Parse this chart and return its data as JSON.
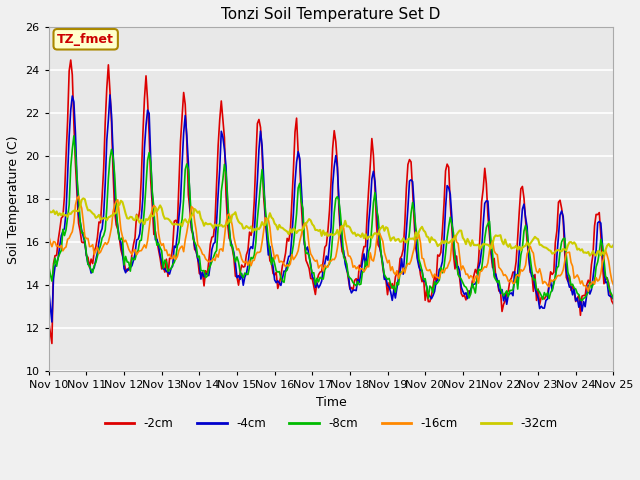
{
  "title": "Tonzi Soil Temperature Set D",
  "xlabel": "Time",
  "ylabel": "Soil Temperature (C)",
  "ylim": [
    10,
    26
  ],
  "xlim": [
    0,
    360
  ],
  "fig_bg": "#f0f0f0",
  "plot_bg": "#e8e8e8",
  "annotation_text": "TZ_fmet",
  "annotation_bg": "#ffffcc",
  "annotation_border": "#aa8800",
  "annotation_text_color": "#cc0000",
  "series_colors": [
    "#dd0000",
    "#0000cc",
    "#00bb00",
    "#ff8800",
    "#cccc00"
  ],
  "series_labels": [
    "-2cm",
    "-4cm",
    "-8cm",
    "-16cm",
    "-32cm"
  ],
  "series_lw": [
    1.2,
    1.2,
    1.2,
    1.2,
    1.5
  ],
  "xtick_labels": [
    "Nov 10",
    "Nov 11",
    "Nov 12",
    "Nov 13",
    "Nov 14",
    "Nov 15",
    "Nov 16",
    "Nov 17",
    "Nov 18",
    "Nov 19",
    "Nov 20",
    "Nov 21",
    "Nov 22",
    "Nov 23",
    "Nov 24",
    "Nov 25"
  ],
  "xtick_positions": [
    0,
    24,
    48,
    72,
    96,
    120,
    144,
    168,
    192,
    216,
    240,
    264,
    288,
    312,
    336,
    360
  ],
  "ytick_positions": [
    10,
    12,
    14,
    16,
    18,
    20,
    22,
    24,
    26
  ]
}
